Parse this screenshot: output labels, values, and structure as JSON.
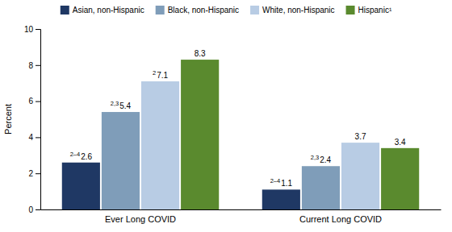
{
  "chart_data": {
    "type": "bar",
    "categories": [
      "Ever Long COVID",
      "Current Long COVID"
    ],
    "series": [
      {
        "name": "Asian, non-Hispanic",
        "color": "#1f3864",
        "values": [
          2.6,
          1.1
        ],
        "annotations": [
          "2–4",
          "2–4"
        ]
      },
      {
        "name": "Black, non-Hispanic",
        "color": "#7f9db9",
        "values": [
          5.4,
          2.4
        ],
        "annotations": [
          "2,3",
          "2,3"
        ]
      },
      {
        "name": "White, non-Hispanic",
        "color": "#b8cce4",
        "values": [
          7.1,
          3.7
        ],
        "annotations": [
          "2",
          null
        ]
      },
      {
        "name": "Hispanic¹",
        "color": "#5a8a2e",
        "values": [
          8.3,
          3.4
        ],
        "annotations": [
          null,
          null
        ]
      }
    ],
    "y_label": "Percent",
    "ylim": [
      0,
      10
    ],
    "yticks": [
      0,
      2,
      4,
      6,
      8,
      10
    ],
    "data_labels": true,
    "legend": "top",
    "grid": false
  }
}
